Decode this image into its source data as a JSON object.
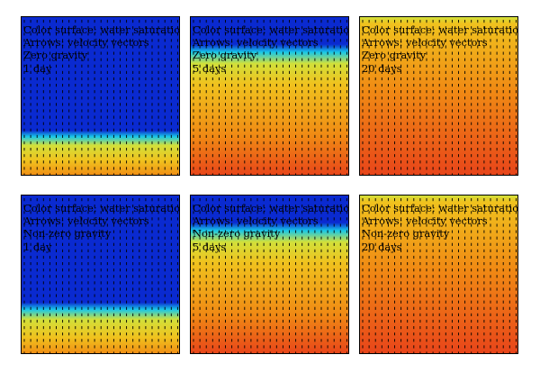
{
  "panels": [
    {
      "lines": [
        "Color surface: water saturation",
        "Arrows: velocity vectors",
        "Zero gravity",
        "1 day"
      ],
      "front": 0.72,
      "sharpness": 0.06,
      "colors": [
        "#0a2ad0",
        "#19c8e8",
        "#d2e03a",
        "#f0c21e",
        "#f08a14",
        "#e8441a"
      ]
    },
    {
      "lines": [
        "Color surface: water saturation",
        "Arrows: velocity vectors",
        "Zero gravity",
        "5 days"
      ],
      "front": 0.18,
      "sharpness": 0.08,
      "colors": [
        "#0a2ad0",
        "#19c8e8",
        "#d2e03a",
        "#f0c21e",
        "#f08a14",
        "#e8441a"
      ]
    },
    {
      "lines": [
        "Color surface: water saturation",
        "Arrows: velocity vectors",
        "Zero gravity",
        "20 days"
      ],
      "front": -0.2,
      "sharpness": 0.08,
      "colors": [
        "#0a2ad0",
        "#19c8e8",
        "#d2e03a",
        "#f0c21e",
        "#f08a14",
        "#e8441a"
      ]
    },
    {
      "lines": [
        "Color surface: water saturation",
        "Arrows: velocity vectors",
        "Non-zero gravity",
        "1 day"
      ],
      "front": 0.68,
      "sharpness": 0.07,
      "colors": [
        "#0a2ad0",
        "#19c8e8",
        "#d2e03a",
        "#f0c21e",
        "#f08a14",
        "#e8441a"
      ]
    },
    {
      "lines": [
        "Color surface: water saturation",
        "Arrows: velocity vectors",
        "Non-zero gravity",
        "5 days"
      ],
      "front": 0.18,
      "sharpness": 0.08,
      "colors": [
        "#0a2ad0",
        "#19c8e8",
        "#d2e03a",
        "#f0c21e",
        "#f08a14",
        "#e8441a"
      ]
    },
    {
      "lines": [
        "Color surface: water saturation",
        "Arrows: velocity vectors",
        "Non-zero gravity",
        "20 days"
      ],
      "front": -0.2,
      "sharpness": 0.08,
      "colors": [
        "#0a2ad0",
        "#19c8e8",
        "#d2e03a",
        "#f0c21e",
        "#f08a14",
        "#e8441a"
      ]
    }
  ]
}
